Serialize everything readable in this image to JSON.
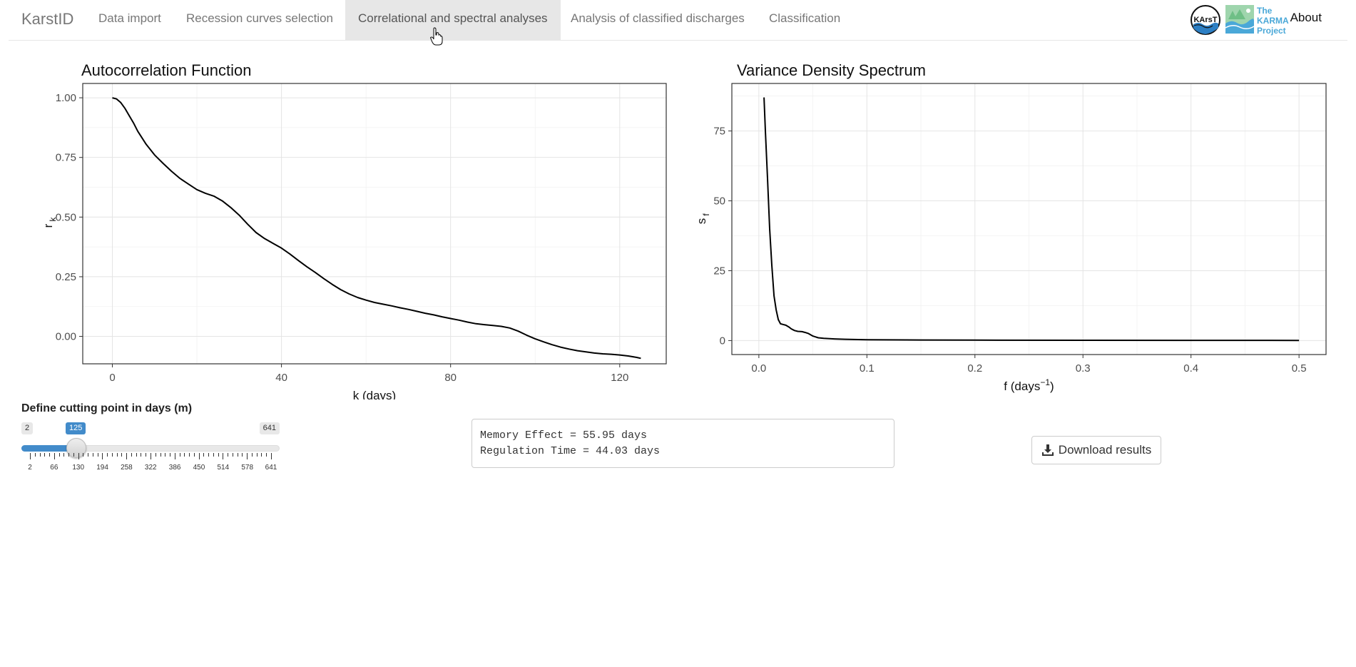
{
  "navbar": {
    "brand": "KarstID",
    "tabs": [
      {
        "label": "Data import"
      },
      {
        "label": "Recession curves selection"
      },
      {
        "label": "Correlational and spectral analyses"
      },
      {
        "label": "Analysis of classified discharges"
      },
      {
        "label": "Classification"
      }
    ],
    "active_tab": "Correlational and spectral analyses",
    "about": "About",
    "karma_logo_text": [
      "The",
      "KARMA",
      "Project"
    ],
    "kart_logo_text": "KArsT"
  },
  "chart_data": [
    {
      "type": "line",
      "title": "Autocorrelation Function",
      "xlabel": "k (days)",
      "ylabel": "r",
      "ylabel_subscript": "k",
      "xlim": [
        -7,
        131
      ],
      "ylim": [
        -0.115,
        1.06
      ],
      "xticks": [
        0,
        40,
        80,
        120
      ],
      "xtick_labels": [
        "0",
        "40",
        "80",
        "120"
      ],
      "yticks": [
        0.0,
        0.25,
        0.5,
        0.75,
        1.0
      ],
      "ytick_labels": [
        "0.00",
        "0.25",
        "0.50",
        "0.75",
        "1.00"
      ],
      "grid": true,
      "series": [
        {
          "x": [
            0,
            1,
            2,
            3,
            4,
            5,
            6,
            8,
            10,
            12,
            14,
            16,
            18,
            20,
            22,
            24,
            26,
            28,
            30,
            32,
            34,
            36,
            38,
            40,
            42,
            44,
            46,
            48,
            50,
            52,
            54,
            56,
            58,
            60,
            62,
            64,
            66,
            68,
            70,
            72,
            74,
            76,
            78,
            80,
            82,
            84,
            86,
            88,
            90,
            92,
            94,
            96,
            98,
            100,
            102,
            104,
            106,
            108,
            110,
            112,
            114,
            116,
            118,
            120,
            122,
            124,
            125
          ],
          "values": [
            1.0,
            0.995,
            0.98,
            0.955,
            0.925,
            0.895,
            0.86,
            0.805,
            0.76,
            0.725,
            0.692,
            0.662,
            0.638,
            0.615,
            0.6,
            0.588,
            0.568,
            0.54,
            0.508,
            0.47,
            0.435,
            0.41,
            0.39,
            0.37,
            0.345,
            0.318,
            0.292,
            0.268,
            0.242,
            0.218,
            0.196,
            0.178,
            0.163,
            0.152,
            0.142,
            0.135,
            0.128,
            0.12,
            0.113,
            0.105,
            0.097,
            0.09,
            0.082,
            0.075,
            0.068,
            0.06,
            0.053,
            0.049,
            0.046,
            0.042,
            0.035,
            0.022,
            0.005,
            -0.01,
            -0.023,
            -0.035,
            -0.045,
            -0.053,
            -0.06,
            -0.065,
            -0.07,
            -0.073,
            -0.075,
            -0.078,
            -0.082,
            -0.088,
            -0.092
          ]
        }
      ]
    },
    {
      "type": "line",
      "title": "Variance Density Spectrum",
      "xlabel": "f (days",
      "xlabel_superscript": "−1",
      "xlabel_close": ")",
      "ylabel": "s",
      "ylabel_subscript": "f",
      "xlim": [
        -0.025,
        0.525
      ],
      "ylim": [
        -5,
        92
      ],
      "xticks": [
        0.0,
        0.1,
        0.2,
        0.3,
        0.4,
        0.5
      ],
      "xtick_labels": [
        "0.0",
        "0.1",
        "0.2",
        "0.3",
        "0.4",
        "0.5"
      ],
      "yticks": [
        0,
        25,
        50,
        75
      ],
      "ytick_labels": [
        "0",
        "25",
        "50",
        "75"
      ],
      "grid": true,
      "series": [
        {
          "x": [
            0.0048,
            0.006,
            0.008,
            0.01,
            0.012,
            0.014,
            0.016,
            0.018,
            0.02,
            0.022,
            0.025,
            0.028,
            0.03,
            0.033,
            0.036,
            0.04,
            0.043,
            0.046,
            0.05,
            0.055,
            0.06,
            0.07,
            0.08,
            0.1,
            0.15,
            0.2,
            0.3,
            0.4,
            0.5
          ],
          "values": [
            87,
            75,
            58,
            40,
            27,
            16,
            11,
            7.5,
            6.0,
            5.8,
            5.5,
            4.8,
            4.2,
            3.6,
            3.3,
            3.2,
            2.9,
            2.5,
            1.6,
            1.0,
            0.8,
            0.6,
            0.45,
            0.3,
            0.2,
            0.15,
            0.1,
            0.08,
            0.06
          ]
        }
      ]
    }
  ],
  "slider": {
    "title": "Define cutting point in days (m)",
    "min": 2,
    "max": 641,
    "value": 125,
    "min_label": "2",
    "max_label": "641",
    "value_label": "125",
    "tick_labels": [
      "2",
      "66",
      "130",
      "194",
      "258",
      "322",
      "386",
      "450",
      "514",
      "578",
      "641"
    ],
    "tick_values": [
      2,
      66,
      130,
      194,
      258,
      322,
      386,
      450,
      514,
      578,
      641
    ]
  },
  "results": {
    "memory_effect": "Memory Effect = 55.95 days",
    "regulation_time": "Regulation Time = 44.03 days"
  },
  "download": {
    "label": "Download results"
  },
  "colors": {
    "accent": "#428bca",
    "nav_active_bg": "#e7e7e7",
    "plot_border": "#333333",
    "gridline": "#ebebeb"
  }
}
